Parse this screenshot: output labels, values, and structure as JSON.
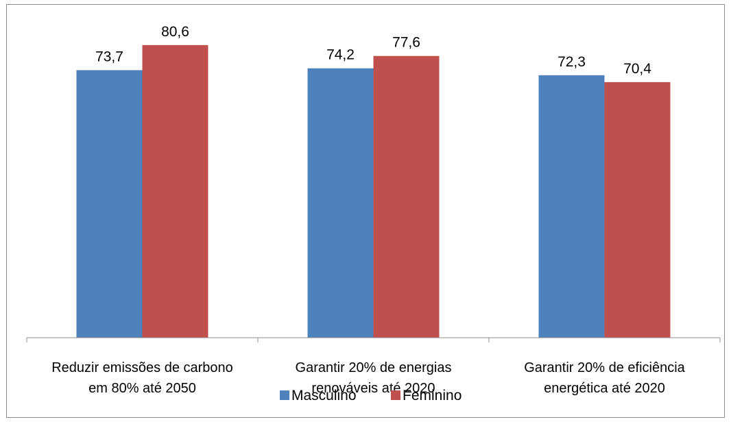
{
  "chart_data": {
    "type": "bar",
    "categories": [
      [
        "Reduzir emissões de carbono",
        "em 80% até 2050"
      ],
      [
        "Garantir 20% de energias",
        "renováveis até 2020"
      ],
      [
        "Garantir 20% de eficiência",
        "energética até 2020"
      ]
    ],
    "series": [
      {
        "name": "Masculino",
        "values": [
          73.7,
          74.2,
          72.3
        ],
        "labels": [
          "73,7",
          "74,2",
          "72,3"
        ],
        "color": "#4f81bd"
      },
      {
        "name": "Feminino",
        "values": [
          80.6,
          77.6,
          70.4
        ],
        "labels": [
          "80,6",
          "77,6",
          "70,4"
        ],
        "color": "#c0504d"
      }
    ],
    "ylim": [
      0,
      100
    ],
    "grid": false,
    "legend_position": "bottom"
  }
}
